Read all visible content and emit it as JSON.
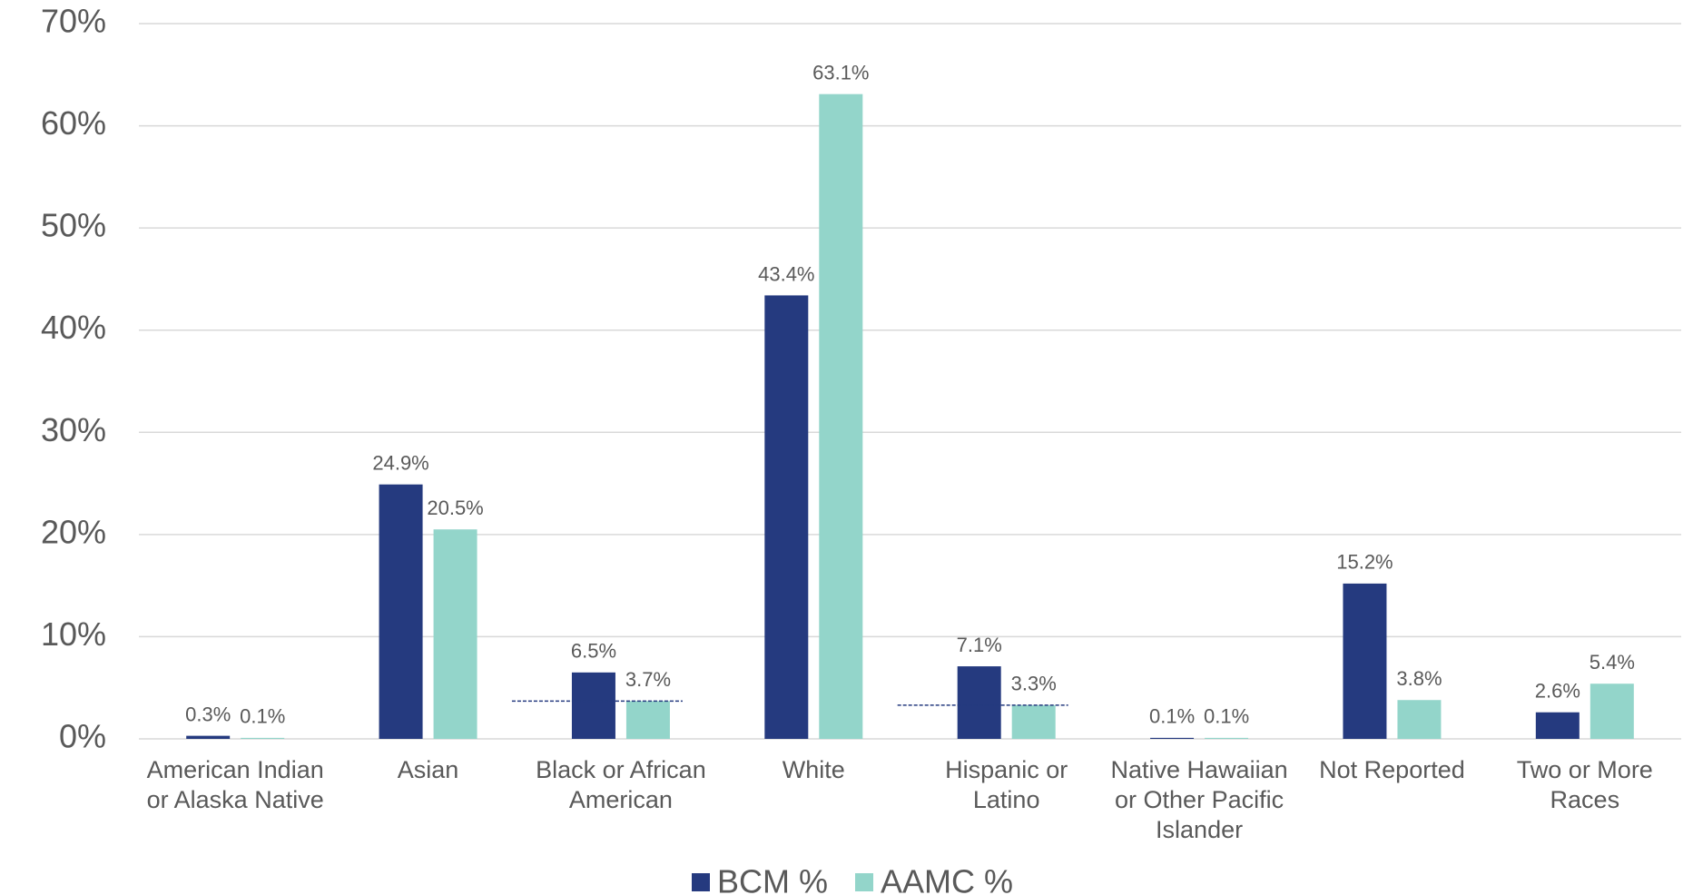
{
  "chart_data": {
    "type": "bar",
    "categories": [
      "American Indian or Alaska Native",
      "Asian",
      "Black or African American",
      "White",
      "Hispanic or Latino",
      "Native Hawaiian or Other Pacific Islander",
      "Not Reported",
      "Two or More Races"
    ],
    "series": [
      {
        "name": "BCM %",
        "color": "#253a7f",
        "values": [
          0.3,
          24.9,
          6.5,
          43.4,
          7.1,
          0.1,
          15.2,
          2.6
        ],
        "value_labels": [
          "0.3%",
          "24.9%",
          "6.5%",
          "43.4%",
          "7.1%",
          "0.1%",
          "15.2%",
          "2.6%"
        ]
      },
      {
        "name": "AAMC %",
        "color": "#93d5ca",
        "values": [
          0.1,
          20.5,
          3.7,
          63.1,
          3.3,
          0.1,
          3.8,
          5.4
        ],
        "value_labels": [
          "0.1%",
          "20.5%",
          "3.7%",
          "63.1%",
          "3.3%",
          "0.1%",
          "3.8%",
          "5.4%"
        ]
      }
    ],
    "ylim": [
      0,
      70
    ],
    "yticks": [
      {
        "value": 0,
        "label": "0%"
      },
      {
        "value": 10,
        "label": "10%"
      },
      {
        "value": 20,
        "label": "20%"
      },
      {
        "value": 30,
        "label": "30%"
      },
      {
        "value": 40,
        "label": "40%"
      },
      {
        "value": 50,
        "label": "50%"
      },
      {
        "value": 60,
        "label": "60%"
      },
      {
        "value": 70,
        "label": "70%"
      }
    ],
    "grid": true
  }
}
